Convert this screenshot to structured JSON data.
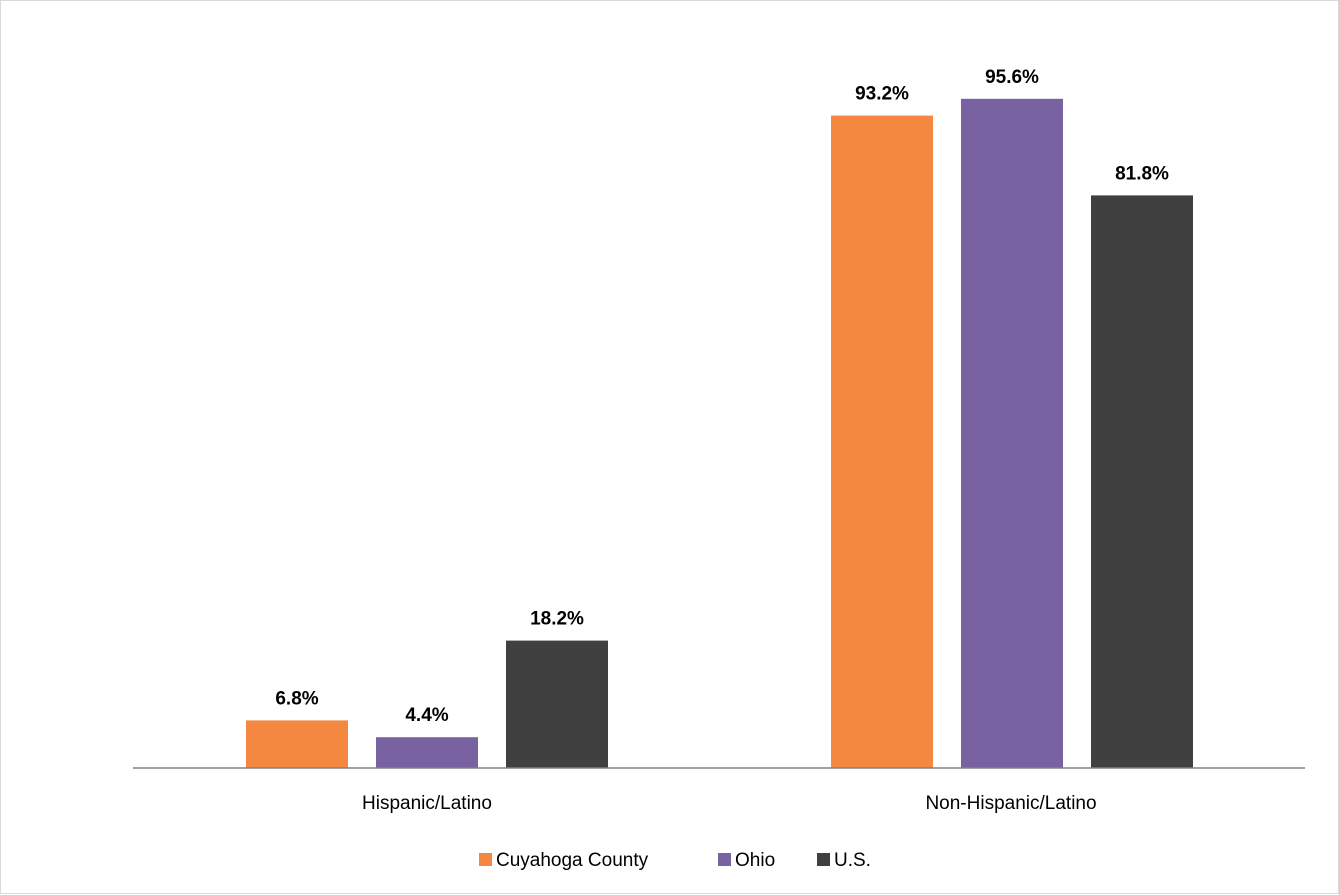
{
  "chart_data": {
    "type": "bar",
    "title": "",
    "xlabel": "",
    "ylabel": "",
    "categories": [
      "Hispanic/Latino",
      "Non-Hispanic/Latino"
    ],
    "series": [
      {
        "name": "Cuyahoga County",
        "color": "#f58840",
        "values": [
          6.8,
          93.2
        ],
        "labels": [
          "6.8%",
          "93.2%"
        ]
      },
      {
        "name": "Ohio",
        "color": "#7962a1",
        "values": [
          4.4,
          95.6
        ],
        "labels": [
          "4.4%",
          "95.6%"
        ]
      },
      {
        "name": "U.S.",
        "color": "#404040",
        "values": [
          18.2,
          81.8
        ],
        "labels": [
          "18.2%",
          "81.8%"
        ]
      }
    ],
    "ylim": [
      0,
      100
    ],
    "grid": false,
    "y_axis_visible": false,
    "legend_position": "bottom",
    "axis_color": "#808080"
  }
}
